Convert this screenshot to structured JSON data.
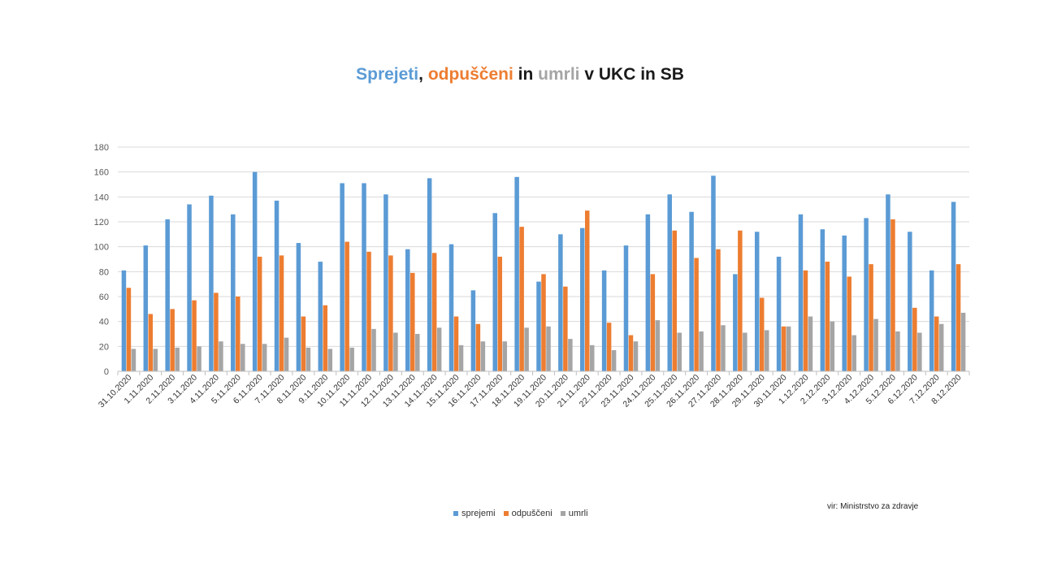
{
  "chart_data": {
    "type": "bar",
    "title_parts": [
      {
        "text": "Sprejeti",
        "color": "#5b9bd5"
      },
      {
        "text": ", ",
        "color": "#1a1a1a"
      },
      {
        "text": "odpuščeni",
        "color": "#ed7d31"
      },
      {
        "text": " in ",
        "color": "#1a1a1a"
      },
      {
        "text": "umrli",
        "color": "#a5a5a5"
      },
      {
        "text": " v UKC in SB",
        "color": "#1a1a1a"
      }
    ],
    "categories": [
      "31.10.2020",
      "1.11.2020",
      "2.11.2020",
      "3.11.2020",
      "4.11.2020",
      "5.11.2020",
      "6.11.2020",
      "7.11.2020",
      "8.11.2020",
      "9.11.2020",
      "10.11.2020",
      "11.11.2020",
      "12.11.2020",
      "13.11.2020",
      "14.11.2020",
      "15.11.2020",
      "16.11.2020",
      "17.11.2020",
      "18.11.2020",
      "19.11.2020",
      "20.11.2020",
      "21.11.2020",
      "22.11.2020",
      "23.11.2020",
      "24.11.2020",
      "25.11.2020",
      "26.11.2020",
      "27.11.2020",
      "28.11.2020",
      "29.11.2020",
      "30.11.2020",
      "1.12.2020",
      "2.12.2020",
      "3.12.2020",
      "4.12.2020",
      "5.12.2020",
      "6.12.2020",
      "7.12.2020",
      "8.12.2020"
    ],
    "series": [
      {
        "name": "sprejemi",
        "color": "#5b9bd5",
        "values": [
          81,
          101,
          122,
          134,
          141,
          126,
          160,
          137,
          103,
          88,
          151,
          151,
          142,
          98,
          155,
          102,
          65,
          127,
          156,
          72,
          110,
          115,
          81,
          101,
          126,
          142,
          128,
          157,
          78,
          112,
          92,
          126,
          114,
          109,
          123,
          142,
          112,
          81,
          136
        ]
      },
      {
        "name": "odpuščeni",
        "color": "#ed7d31",
        "values": [
          67,
          46,
          50,
          57,
          63,
          60,
          92,
          93,
          44,
          53,
          104,
          96,
          93,
          79,
          95,
          44,
          38,
          92,
          116,
          78,
          68,
          129,
          39,
          29,
          78,
          113,
          91,
          98,
          113,
          59,
          36,
          81,
          88,
          76,
          86,
          122,
          51,
          44,
          86
        ]
      },
      {
        "name": "umrli",
        "color": "#a5a5a5",
        "values": [
          18,
          18,
          19,
          20,
          24,
          22,
          22,
          27,
          19,
          18,
          19,
          34,
          31,
          30,
          35,
          21,
          24,
          24,
          35,
          36,
          26,
          21,
          17,
          24,
          41,
          31,
          32,
          37,
          31,
          33,
          36,
          44,
          40,
          29,
          42,
          32,
          31,
          38,
          47
        ]
      }
    ],
    "ylim": [
      0,
      180
    ],
    "yticks": [
      0,
      20,
      40,
      60,
      80,
      100,
      120,
      140,
      160,
      180
    ],
    "grid": true,
    "legend_position": "bottom"
  },
  "source_note": "vir: Ministrstvo za zdravje"
}
